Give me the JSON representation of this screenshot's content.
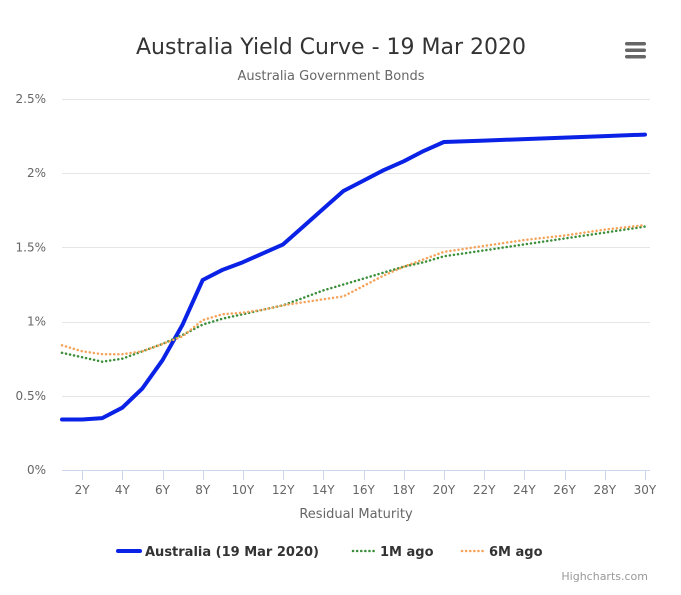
{
  "chart_data": {
    "type": "line",
    "title": "Australia Yield Curve - 19 Mar 2020",
    "subtitle": "Australia Government Bonds",
    "xlabel": "Residual Maturity",
    "ylabel": "",
    "x_tick_labels": [
      "2Y",
      "4Y",
      "6Y",
      "8Y",
      "10Y",
      "12Y",
      "14Y",
      "16Y",
      "18Y",
      "20Y",
      "22Y",
      "24Y",
      "26Y",
      "28Y",
      "30Y"
    ],
    "x_tick_values": [
      2,
      4,
      6,
      8,
      10,
      12,
      14,
      16,
      18,
      20,
      22,
      24,
      26,
      28,
      30
    ],
    "xlim": [
      1,
      30.25
    ],
    "y_tick_labels": [
      "0%",
      "0.5%",
      "1%",
      "1.5%",
      "2%",
      "2.5%"
    ],
    "y_tick_values": [
      0,
      0.5,
      1,
      1.5,
      2,
      2.5
    ],
    "ylim": [
      0,
      2.5
    ],
    "unit": "%",
    "grid": true,
    "legend_position": "bottom-center",
    "series": [
      {
        "name": "Australia (19 Mar 2020)",
        "color": "#0a22e6",
        "style": "solid",
        "points": [
          [
            1,
            0.34
          ],
          [
            2,
            0.34
          ],
          [
            3,
            0.35
          ],
          [
            4,
            0.42
          ],
          [
            5,
            0.55
          ],
          [
            6,
            0.74
          ],
          [
            7,
            0.98
          ],
          [
            8,
            1.28
          ],
          [
            9,
            1.35
          ],
          [
            10,
            1.4
          ],
          [
            11,
            1.46
          ],
          [
            12,
            1.52
          ],
          [
            13,
            1.64
          ],
          [
            14,
            1.76
          ],
          [
            15,
            1.88
          ],
          [
            16,
            1.95
          ],
          [
            17,
            2.02
          ],
          [
            18,
            2.08
          ],
          [
            19,
            2.15
          ],
          [
            20,
            2.21
          ],
          [
            22,
            2.22
          ],
          [
            24,
            2.23
          ],
          [
            26,
            2.24
          ],
          [
            28,
            2.25
          ],
          [
            30,
            2.26
          ]
        ]
      },
      {
        "name": "1M ago",
        "color": "#3b8f3b",
        "style": "dotted",
        "points": [
          [
            1,
            0.79
          ],
          [
            2,
            0.76
          ],
          [
            3,
            0.73
          ],
          [
            4,
            0.75
          ],
          [
            5,
            0.8
          ],
          [
            6,
            0.85
          ],
          [
            7,
            0.91
          ],
          [
            8,
            0.98
          ],
          [
            9,
            1.02
          ],
          [
            10,
            1.05
          ],
          [
            11,
            1.08
          ],
          [
            12,
            1.11
          ],
          [
            13,
            1.16
          ],
          [
            14,
            1.21
          ],
          [
            15,
            1.25
          ],
          [
            16,
            1.29
          ],
          [
            17,
            1.33
          ],
          [
            18,
            1.37
          ],
          [
            19,
            1.4
          ],
          [
            20,
            1.44
          ],
          [
            22,
            1.48
          ],
          [
            24,
            1.52
          ],
          [
            26,
            1.56
          ],
          [
            28,
            1.6
          ],
          [
            30,
            1.64
          ]
        ]
      },
      {
        "name": "6M ago",
        "color": "#f5a35a",
        "style": "dotted",
        "points": [
          [
            1,
            0.84
          ],
          [
            2,
            0.8
          ],
          [
            3,
            0.78
          ],
          [
            4,
            0.78
          ],
          [
            5,
            0.8
          ],
          [
            6,
            0.85
          ],
          [
            7,
            0.9
          ],
          [
            8,
            1.01
          ],
          [
            9,
            1.05
          ],
          [
            10,
            1.06
          ],
          [
            11,
            1.08
          ],
          [
            12,
            1.11
          ],
          [
            13,
            1.13
          ],
          [
            14,
            1.15
          ],
          [
            15,
            1.17
          ],
          [
            16,
            1.24
          ],
          [
            17,
            1.31
          ],
          [
            18,
            1.37
          ],
          [
            19,
            1.42
          ],
          [
            20,
            1.47
          ],
          [
            22,
            1.51
          ],
          [
            24,
            1.55
          ],
          [
            26,
            1.58
          ],
          [
            28,
            1.62
          ],
          [
            30,
            1.65
          ]
        ]
      }
    ]
  },
  "credits": "Highcharts.com",
  "menu": {
    "icon": "hamburger-menu-icon"
  }
}
